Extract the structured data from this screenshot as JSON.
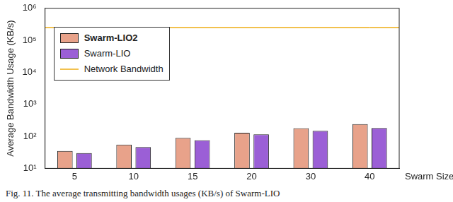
{
  "chart_data": {
    "type": "bar",
    "caption": "Fig. 11. The average transmitting bandwidth usages (KB/s) of Swarm-LIO",
    "categories": [
      "5",
      "10",
      "15",
      "20",
      "30",
      "40"
    ],
    "x_label": "Swarm Size",
    "y_label": "Average Bandwidth Usage (KB/s)",
    "series": [
      {
        "name": "Swarm-LIO2",
        "color": "#e8a28a",
        "values": [
          35,
          55,
          90,
          130,
          180,
          240
        ]
      },
      {
        "name": "Swarm-LIO",
        "color": "#9b5fd6",
        "values": [
          30,
          46,
          76,
          115,
          148,
          182
        ]
      },
      {
        "name": "Network Bandwidth",
        "type": "line",
        "color": "#f2c14e",
        "values": [
          250000,
          250000,
          250000,
          250000,
          250000,
          250000
        ]
      }
    ],
    "ylim": [
      10,
      1000000
    ],
    "yticks": [
      {
        "value": 10,
        "label": "10¹"
      },
      {
        "value": 100,
        "label": "10²"
      },
      {
        "value": 1000,
        "label": "10³"
      },
      {
        "value": 10000,
        "label": "10⁴"
      },
      {
        "value": 100000,
        "label": "10⁵"
      },
      {
        "value": 1000000,
        "label": "10⁶"
      }
    ],
    "log": "y",
    "grid": false,
    "legend": "upper left"
  }
}
